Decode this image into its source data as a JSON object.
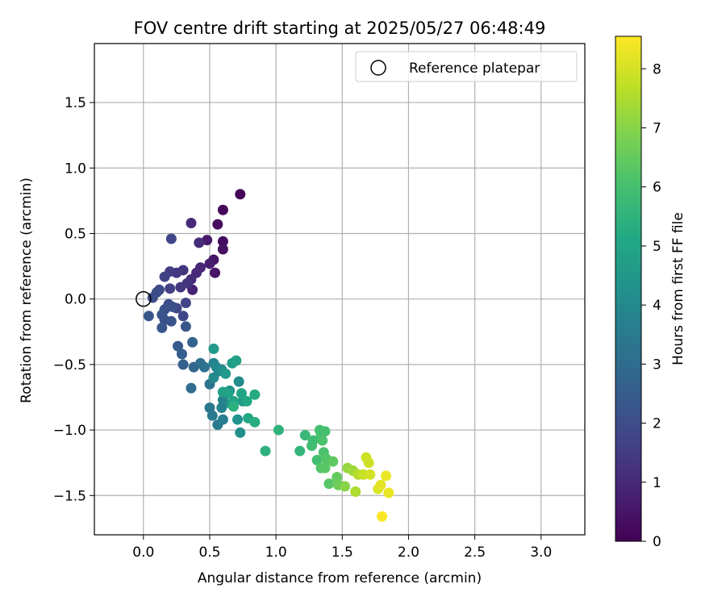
{
  "chart_data": {
    "type": "scatter",
    "title": "FOV centre drift starting at 2025/05/27 06:48:49",
    "xlabel": "Angular distance from reference (arcmin)",
    "ylabel": "Rotation from reference (arcmin)",
    "xlim": [
      -0.37,
      3.33
    ],
    "ylim": [
      -1.8,
      1.95
    ],
    "xticks": [
      0.0,
      0.5,
      1.0,
      1.5,
      2.0,
      2.5,
      3.0
    ],
    "xtick_labels": [
      "0.0",
      "0.5",
      "1.0",
      "1.5",
      "2.0",
      "2.5",
      "3.0"
    ],
    "yticks": [
      -1.5,
      -1.0,
      -0.5,
      0.0,
      0.5,
      1.0,
      1.5
    ],
    "ytick_labels": [
      "−1.5",
      "−1.0",
      "−0.5",
      "0.0",
      "0.5",
      "1.0",
      "1.5"
    ],
    "grid": true,
    "legend": {
      "placement": "top-right",
      "entries": [
        "Reference platepar"
      ]
    },
    "reference_point": {
      "x": 0.0,
      "y": 0.0,
      "marker": "open-circle"
    },
    "colorbar": {
      "label": "Hours from first FF file",
      "colormap": "viridis",
      "range": [
        0,
        8.55
      ],
      "ticks": [
        0,
        1,
        2,
        3,
        4,
        5,
        6,
        7,
        8
      ],
      "tick_labels": [
        "0",
        "1",
        "2",
        "3",
        "4",
        "5",
        "6",
        "7",
        "8"
      ]
    },
    "points": [
      {
        "x": 0.73,
        "y": 0.8,
        "c": 0.1
      },
      {
        "x": 0.6,
        "y": 0.68,
        "c": 0.2
      },
      {
        "x": 0.56,
        "y": 0.57,
        "c": 0.3
      },
      {
        "x": 0.6,
        "y": 0.44,
        "c": 0.3
      },
      {
        "x": 0.6,
        "y": 0.38,
        "c": 0.4
      },
      {
        "x": 0.53,
        "y": 0.3,
        "c": 0.5
      },
      {
        "x": 0.54,
        "y": 0.2,
        "c": 0.5
      },
      {
        "x": 0.48,
        "y": 0.45,
        "c": 0.6
      },
      {
        "x": 0.5,
        "y": 0.27,
        "c": 0.7
      },
      {
        "x": 0.37,
        "y": 0.07,
        "c": 0.8
      },
      {
        "x": 0.43,
        "y": 0.24,
        "c": 0.9
      },
      {
        "x": 0.4,
        "y": 0.2,
        "c": 1.0
      },
      {
        "x": 0.36,
        "y": 0.58,
        "c": 1.0
      },
      {
        "x": 0.42,
        "y": 0.43,
        "c": 1.1
      },
      {
        "x": 0.36,
        "y": 0.15,
        "c": 1.1
      },
      {
        "x": 0.3,
        "y": 0.22,
        "c": 1.3
      },
      {
        "x": 0.33,
        "y": 0.12,
        "c": 1.3
      },
      {
        "x": 0.28,
        "y": 0.09,
        "c": 1.4
      },
      {
        "x": 0.25,
        "y": 0.2,
        "c": 1.4
      },
      {
        "x": 0.2,
        "y": 0.21,
        "c": 1.5
      },
      {
        "x": 0.16,
        "y": 0.17,
        "c": 1.6
      },
      {
        "x": 0.2,
        "y": 0.08,
        "c": 1.6
      },
      {
        "x": 0.25,
        "y": -0.07,
        "c": 1.7
      },
      {
        "x": 0.32,
        "y": -0.03,
        "c": 1.7
      },
      {
        "x": 0.3,
        "y": -0.13,
        "c": 1.8
      },
      {
        "x": 0.21,
        "y": 0.46,
        "c": 1.8
      },
      {
        "x": 0.12,
        "y": 0.07,
        "c": 1.9
      },
      {
        "x": 0.1,
        "y": 0.05,
        "c": 2.0
      },
      {
        "x": 0.07,
        "y": 0.01,
        "c": 2.0
      },
      {
        "x": 0.19,
        "y": -0.04,
        "c": 2.0
      },
      {
        "x": 0.22,
        "y": -0.06,
        "c": 2.1
      },
      {
        "x": 0.16,
        "y": -0.08,
        "c": 2.1
      },
      {
        "x": 0.14,
        "y": -0.12,
        "c": 2.2
      },
      {
        "x": 0.16,
        "y": -0.16,
        "c": 2.2
      },
      {
        "x": 0.21,
        "y": -0.17,
        "c": 2.2
      },
      {
        "x": 0.14,
        "y": -0.22,
        "c": 2.3
      },
      {
        "x": 0.32,
        "y": -0.21,
        "c": 2.3
      },
      {
        "x": 0.04,
        "y": -0.13,
        "c": 2.3
      },
      {
        "x": 0.26,
        "y": -0.36,
        "c": 2.4
      },
      {
        "x": 0.29,
        "y": -0.42,
        "c": 2.5
      },
      {
        "x": 0.3,
        "y": -0.5,
        "c": 2.6
      },
      {
        "x": 0.37,
        "y": -0.33,
        "c": 2.7
      },
      {
        "x": 0.38,
        "y": -0.52,
        "c": 2.8
      },
      {
        "x": 0.36,
        "y": -0.68,
        "c": 3.0
      },
      {
        "x": 0.43,
        "y": -0.49,
        "c": 3.1
      },
      {
        "x": 0.46,
        "y": -0.52,
        "c": 3.2
      },
      {
        "x": 0.5,
        "y": -0.65,
        "c": 3.3
      },
      {
        "x": 0.5,
        "y": -0.83,
        "c": 3.4
      },
      {
        "x": 0.52,
        "y": -0.89,
        "c": 3.5
      },
      {
        "x": 0.56,
        "y": -0.96,
        "c": 3.5
      },
      {
        "x": 0.6,
        "y": -0.92,
        "c": 3.6
      },
      {
        "x": 0.6,
        "y": -0.77,
        "c": 3.7
      },
      {
        "x": 0.59,
        "y": -0.83,
        "c": 3.7
      },
      {
        "x": 0.57,
        "y": -0.55,
        "c": 3.8
      },
      {
        "x": 0.53,
        "y": -0.49,
        "c": 3.8
      },
      {
        "x": 0.55,
        "y": -0.52,
        "c": 3.9
      },
      {
        "x": 0.53,
        "y": -0.6,
        "c": 4.0
      },
      {
        "x": 0.59,
        "y": -0.54,
        "c": 4.1
      },
      {
        "x": 0.72,
        "y": -0.63,
        "c": 4.1
      },
      {
        "x": 0.73,
        "y": -1.02,
        "c": 4.2
      },
      {
        "x": 0.71,
        "y": -0.92,
        "c": 4.3
      },
      {
        "x": 0.65,
        "y": -0.7,
        "c": 4.3
      },
      {
        "x": 0.66,
        "y": -0.8,
        "c": 4.4
      },
      {
        "x": 0.75,
        "y": -0.78,
        "c": 4.5
      },
      {
        "x": 0.53,
        "y": -0.38,
        "c": 4.6
      },
      {
        "x": 0.62,
        "y": -0.57,
        "c": 4.6
      },
      {
        "x": 0.67,
        "y": -0.49,
        "c": 4.7
      },
      {
        "x": 0.7,
        "y": -0.47,
        "c": 4.8
      },
      {
        "x": 0.6,
        "y": -0.71,
        "c": 4.8
      },
      {
        "x": 0.64,
        "y": -0.72,
        "c": 4.9
      },
      {
        "x": 0.68,
        "y": -0.78,
        "c": 5.0
      },
      {
        "x": 0.74,
        "y": -0.72,
        "c": 5.0
      },
      {
        "x": 0.79,
        "y": -0.91,
        "c": 5.1
      },
      {
        "x": 0.78,
        "y": -0.78,
        "c": 5.1
      },
      {
        "x": 0.84,
        "y": -0.73,
        "c": 5.2
      },
      {
        "x": 0.84,
        "y": -0.94,
        "c": 5.3
      },
      {
        "x": 0.68,
        "y": -0.82,
        "c": 5.4
      },
      {
        "x": 0.92,
        "y": -1.16,
        "c": 5.4
      },
      {
        "x": 1.02,
        "y": -1.0,
        "c": 5.5
      },
      {
        "x": 1.18,
        "y": -1.16,
        "c": 5.6
      },
      {
        "x": 1.22,
        "y": -1.04,
        "c": 5.7
      },
      {
        "x": 1.28,
        "y": -1.08,
        "c": 5.8
      },
      {
        "x": 1.27,
        "y": -1.12,
        "c": 5.9
      },
      {
        "x": 1.31,
        "y": -1.23,
        "c": 5.9
      },
      {
        "x": 1.33,
        "y": -1.0,
        "c": 6.0
      },
      {
        "x": 1.34,
        "y": -1.04,
        "c": 6.0
      },
      {
        "x": 1.37,
        "y": -1.01,
        "c": 6.0
      },
      {
        "x": 1.35,
        "y": -1.08,
        "c": 6.1
      },
      {
        "x": 1.36,
        "y": -1.17,
        "c": 6.1
      },
      {
        "x": 1.34,
        "y": -1.29,
        "c": 6.2
      },
      {
        "x": 1.38,
        "y": -1.22,
        "c": 6.2
      },
      {
        "x": 1.37,
        "y": -1.29,
        "c": 6.3
      },
      {
        "x": 1.4,
        "y": -1.41,
        "c": 6.3
      },
      {
        "x": 1.43,
        "y": -1.24,
        "c": 6.4
      },
      {
        "x": 1.46,
        "y": -1.36,
        "c": 6.5
      },
      {
        "x": 1.47,
        "y": -1.42,
        "c": 6.6
      },
      {
        "x": 1.52,
        "y": -1.43,
        "c": 7.0
      },
      {
        "x": 1.54,
        "y": -1.29,
        "c": 7.2
      },
      {
        "x": 1.58,
        "y": -1.31,
        "c": 7.3
      },
      {
        "x": 1.6,
        "y": -1.47,
        "c": 7.5
      },
      {
        "x": 1.62,
        "y": -1.34,
        "c": 7.6
      },
      {
        "x": 1.66,
        "y": -1.34,
        "c": 7.8
      },
      {
        "x": 1.68,
        "y": -1.21,
        "c": 7.9
      },
      {
        "x": 1.7,
        "y": -1.25,
        "c": 7.9
      },
      {
        "x": 1.71,
        "y": -1.34,
        "c": 8.0
      },
      {
        "x": 1.77,
        "y": -1.45,
        "c": 8.1
      },
      {
        "x": 1.79,
        "y": -1.42,
        "c": 8.2
      },
      {
        "x": 1.83,
        "y": -1.35,
        "c": 8.3
      },
      {
        "x": 1.85,
        "y": -1.48,
        "c": 8.3
      },
      {
        "x": 1.8,
        "y": -1.66,
        "c": 8.5
      }
    ],
    "colors": {
      "grid": "#b0b0b0",
      "axes": "#000000",
      "legend_border": "#cccccc"
    }
  }
}
